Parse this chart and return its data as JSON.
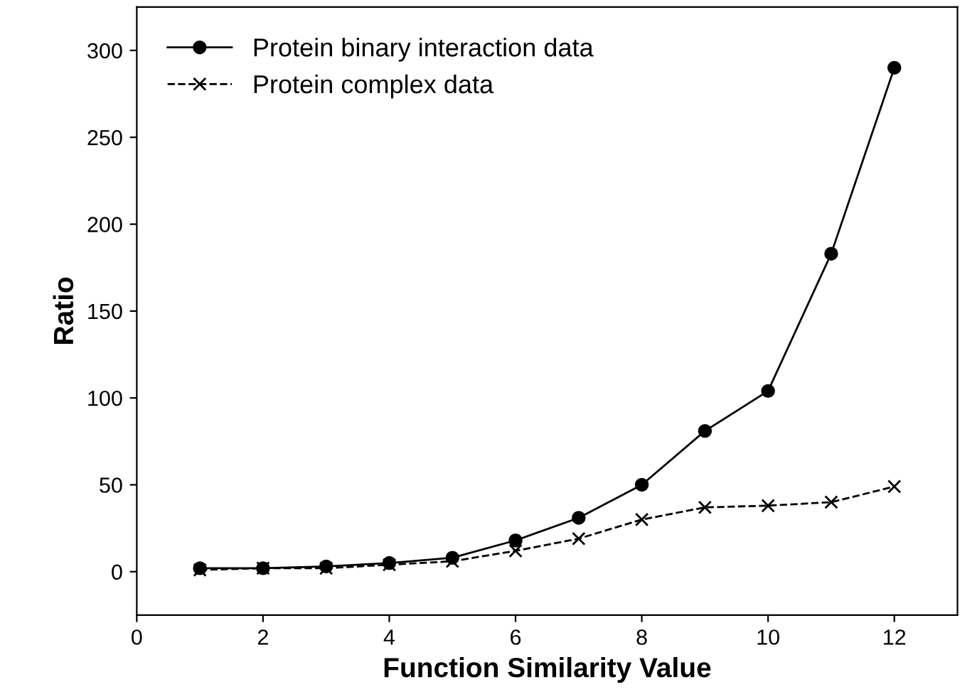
{
  "chart_data": {
    "type": "line",
    "xlabel": "Function Similarity Value",
    "ylabel": "Ratio",
    "x": [
      1,
      2,
      3,
      4,
      5,
      6,
      7,
      8,
      9,
      10,
      11,
      12
    ],
    "series": [
      {
        "name": "Protein binary interaction data",
        "color": "#000000",
        "marker": "circle",
        "line_style": "solid",
        "values": [
          2,
          2,
          3,
          5,
          8,
          18,
          31,
          50,
          81,
          104,
          183,
          290
        ]
      },
      {
        "name": "Protein complex data",
        "color": "#000000",
        "marker": "cross",
        "line_style": "dashed",
        "values": [
          1,
          2,
          2,
          4,
          6,
          12,
          19,
          30,
          37,
          38,
          40,
          49
        ]
      }
    ],
    "xlim": [
      0,
      13
    ],
    "xticks": [
      0,
      2,
      4,
      6,
      8,
      10,
      12
    ],
    "ylim": [
      -25,
      325
    ],
    "yticks": [
      0,
      50,
      100,
      150,
      200,
      250,
      300
    ],
    "grid": false,
    "legend": "top left"
  }
}
